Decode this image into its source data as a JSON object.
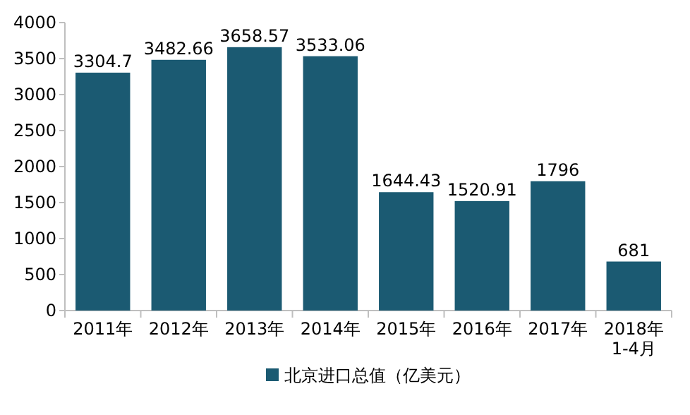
{
  "chart_data": {
    "type": "bar",
    "categories": [
      "2011年",
      "2012年",
      "2013年",
      "2014年",
      "2015年",
      "2016年",
      "2017年",
      "2018年1-4月"
    ],
    "series": [
      {
        "name": "北京进口总值（亿美元）",
        "color": "#1b5a72",
        "values": [
          3304.7,
          3482.66,
          3658.57,
          3533.06,
          1644.43,
          1520.91,
          1796,
          681
        ]
      }
    ],
    "ylim": [
      0,
      4000
    ],
    "yticks": [
      0,
      500,
      1000,
      1500,
      2000,
      2500,
      3000,
      3500,
      4000
    ],
    "data_labels": true,
    "legend": "bottom"
  }
}
